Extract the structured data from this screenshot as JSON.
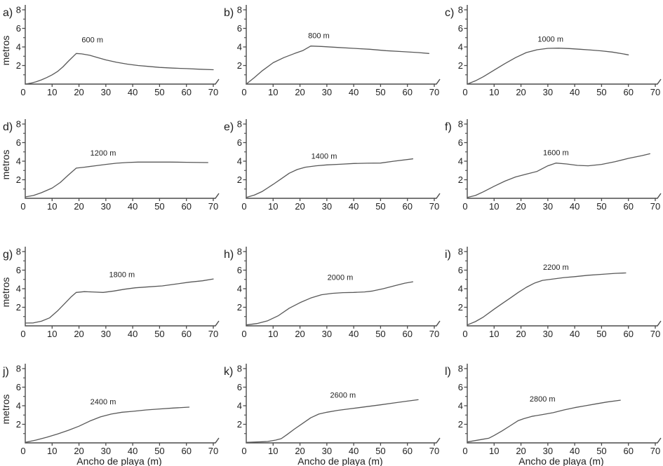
{
  "figure": {
    "xlabel": "Ancho de playa (m)",
    "ylabel": "metros",
    "colors": {
      "axis": "#4a4a4a",
      "curve": "#585858",
      "text": "#1e1e1e",
      "background": "#ffffff"
    },
    "axes": {
      "xlim": [
        0,
        70
      ],
      "ylim": [
        0,
        8
      ],
      "xticks": [
        0,
        10,
        20,
        30,
        40,
        50,
        60,
        70
      ],
      "yticks": [
        0,
        2,
        4,
        6,
        8
      ],
      "yminorticks": [
        1,
        3,
        5,
        7
      ],
      "grid": false
    }
  },
  "chart_data": [
    {
      "type": "line",
      "panel": "a)",
      "annotation": "600 m",
      "annotation_xy": [
        25,
        4.5
      ],
      "xlabel": "Ancho de playa (m)",
      "ylabel": "metros",
      "xlim": [
        0,
        70
      ],
      "ylim": [
        0,
        8
      ],
      "x": [
        0,
        2,
        4,
        6,
        8,
        10,
        12,
        14,
        16,
        19,
        21,
        24,
        27,
        30,
        34,
        38,
        42,
        46,
        50,
        55,
        60,
        65,
        70
      ],
      "y": [
        0,
        0.1,
        0.25,
        0.45,
        0.7,
        1.0,
        1.35,
        1.85,
        2.45,
        3.3,
        3.25,
        3.1,
        2.85,
        2.6,
        2.35,
        2.15,
        2.0,
        1.9,
        1.8,
        1.72,
        1.67,
        1.6,
        1.55
      ]
    },
    {
      "type": "line",
      "panel": "b)",
      "annotation": "800 m",
      "annotation_xy": [
        27,
        4.95
      ],
      "xlabel": "Ancho de playa (m)",
      "ylabel": "metros",
      "xlim": [
        0,
        70
      ],
      "ylim": [
        0,
        8
      ],
      "x": [
        0,
        3,
        6,
        10,
        14,
        18,
        21,
        24,
        28,
        34,
        40,
        46,
        52,
        58,
        64,
        68
      ],
      "y": [
        0,
        0.7,
        1.45,
        2.3,
        2.85,
        3.3,
        3.6,
        4.1,
        4.05,
        3.95,
        3.85,
        3.75,
        3.6,
        3.5,
        3.4,
        3.3
      ]
    },
    {
      "type": "line",
      "panel": "c)",
      "annotation": "1000 m",
      "annotation_xy": [
        31,
        4.55
      ],
      "xlabel": "Ancho de playa (m)",
      "ylabel": "metros",
      "xlim": [
        0,
        70
      ],
      "ylim": [
        0,
        8
      ],
      "x": [
        0,
        3,
        6,
        10,
        14,
        18,
        22,
        26,
        30,
        34,
        38,
        42,
        46,
        50,
        54,
        58,
        60
      ],
      "y": [
        0,
        0.35,
        0.8,
        1.5,
        2.2,
        2.85,
        3.4,
        3.7,
        3.85,
        3.87,
        3.83,
        3.75,
        3.67,
        3.58,
        3.45,
        3.25,
        3.15
      ]
    },
    {
      "type": "line",
      "panel": "d)",
      "annotation": "1200 m",
      "annotation_xy": [
        29,
        4.6
      ],
      "xlabel": "Ancho de playa (m)",
      "ylabel": "metros",
      "xlim": [
        0,
        70
      ],
      "ylim": [
        0,
        8
      ],
      "x": [
        0,
        3,
        6,
        10,
        13,
        16,
        19,
        22,
        26,
        30,
        34,
        38,
        42,
        48,
        54,
        60,
        68
      ],
      "y": [
        0.15,
        0.3,
        0.6,
        1.1,
        1.7,
        2.5,
        3.25,
        3.35,
        3.5,
        3.65,
        3.78,
        3.86,
        3.9,
        3.9,
        3.9,
        3.88,
        3.85
      ]
    },
    {
      "type": "line",
      "panel": "e)",
      "annotation": "1400 m",
      "annotation_xy": [
        29,
        4.25
      ],
      "xlabel": "Ancho de playa (m)",
      "ylabel": "metros",
      "xlim": [
        0,
        70
      ],
      "ylim": [
        0,
        8
      ],
      "x": [
        0,
        3,
        6,
        10,
        13,
        16,
        19,
        22,
        26,
        30,
        35,
        40,
        45,
        50,
        55,
        62
      ],
      "y": [
        0.1,
        0.35,
        0.75,
        1.5,
        2.1,
        2.7,
        3.1,
        3.35,
        3.5,
        3.6,
        3.67,
        3.75,
        3.78,
        3.8,
        4.0,
        4.25
      ]
    },
    {
      "type": "line",
      "panel": "f)",
      "annotation": "1600 m",
      "annotation_xy": [
        33,
        4.65
      ],
      "xlabel": "Ancho de playa (m)",
      "ylabel": "metros",
      "xlim": [
        0,
        70
      ],
      "ylim": [
        0,
        8
      ],
      "x": [
        0,
        3,
        6,
        10,
        14,
        18,
        22,
        26,
        30,
        33,
        37,
        41,
        45,
        50,
        55,
        60,
        65,
        68
      ],
      "y": [
        0.1,
        0.3,
        0.7,
        1.3,
        1.85,
        2.3,
        2.6,
        2.9,
        3.5,
        3.8,
        3.7,
        3.55,
        3.5,
        3.65,
        3.95,
        4.3,
        4.6,
        4.8
      ]
    },
    {
      "type": "line",
      "panel": "g)",
      "annotation": "1800 m",
      "annotation_xy": [
        36,
        5.25
      ],
      "xlabel": "Ancho de playa (m)",
      "ylabel": "metros",
      "xlim": [
        0,
        70
      ],
      "ylim": [
        0,
        8
      ],
      "x": [
        0,
        3,
        6,
        9,
        12,
        15,
        17,
        19,
        22,
        25,
        29,
        33,
        37,
        41,
        46,
        51,
        56,
        61,
        66,
        70
      ],
      "y": [
        0.3,
        0.32,
        0.5,
        0.85,
        1.6,
        2.5,
        3.1,
        3.6,
        3.68,
        3.65,
        3.6,
        3.75,
        3.95,
        4.1,
        4.2,
        4.3,
        4.5,
        4.7,
        4.85,
        5.05
      ]
    },
    {
      "type": "line",
      "panel": "h)",
      "annotation": "2000 m",
      "annotation_xy": [
        35,
        4.95
      ],
      "xlabel": "Ancho de playa (m)",
      "ylabel": "metros",
      "xlim": [
        0,
        70
      ],
      "ylim": [
        0,
        8
      ],
      "x": [
        0,
        4,
        8,
        12,
        16,
        20,
        24,
        28,
        32,
        36,
        40,
        44,
        47,
        51,
        55,
        59,
        62
      ],
      "y": [
        0.1,
        0.25,
        0.55,
        1.1,
        1.9,
        2.5,
        3.0,
        3.35,
        3.5,
        3.58,
        3.6,
        3.65,
        3.75,
        4.0,
        4.3,
        4.6,
        4.75
      ]
    },
    {
      "type": "line",
      "panel": "i)",
      "annotation": "2200 m",
      "annotation_xy": [
        33,
        6.05
      ],
      "xlabel": "Ancho de playa (m)",
      "ylabel": "metros",
      "xlim": [
        0,
        70
      ],
      "ylim": [
        0,
        8
      ],
      "x": [
        0,
        3,
        6,
        10,
        13,
        16,
        19,
        22,
        25,
        28,
        32,
        36,
        40,
        45,
        50,
        55,
        59
      ],
      "y": [
        0.1,
        0.45,
        0.95,
        1.8,
        2.4,
        3.0,
        3.6,
        4.15,
        4.6,
        4.9,
        5.05,
        5.2,
        5.3,
        5.45,
        5.55,
        5.65,
        5.7
      ]
    },
    {
      "type": "line",
      "panel": "j)",
      "annotation": "2400 m",
      "annotation_xy": [
        29,
        4.15
      ],
      "xlabel": "Ancho de playa (m)",
      "ylabel": "metros",
      "xlim": [
        0,
        70
      ],
      "ylim": [
        0,
        8
      ],
      "x": [
        0,
        4,
        8,
        12,
        16,
        20,
        24,
        28,
        32,
        36,
        40,
        45,
        50,
        55,
        61
      ],
      "y": [
        0.05,
        0.3,
        0.6,
        0.95,
        1.35,
        1.8,
        2.35,
        2.8,
        3.1,
        3.3,
        3.4,
        3.55,
        3.65,
        3.75,
        3.85
      ]
    },
    {
      "type": "line",
      "panel": "k)",
      "annotation": "2600 m",
      "annotation_xy": [
        36,
        4.85
      ],
      "xlabel": "Ancho de playa (m)",
      "ylabel": "metros",
      "xlim": [
        0,
        70
      ],
      "ylim": [
        0,
        8
      ],
      "x": [
        0,
        4,
        8,
        11,
        13,
        15,
        18,
        21,
        24,
        27,
        30,
        34,
        38,
        42,
        46,
        50,
        55,
        60,
        64
      ],
      "y": [
        0.05,
        0.1,
        0.15,
        0.3,
        0.45,
        0.85,
        1.5,
        2.1,
        2.7,
        3.1,
        3.3,
        3.5,
        3.65,
        3.8,
        3.95,
        4.1,
        4.3,
        4.5,
        4.65
      ]
    },
    {
      "type": "line",
      "panel": "l)",
      "annotation": "2800 m",
      "annotation_xy": [
        28,
        4.45
      ],
      "xlabel": "Ancho de playa (m)",
      "ylabel": "metros",
      "xlim": [
        0,
        70
      ],
      "ylim": [
        0,
        8
      ],
      "x": [
        0,
        3,
        6,
        8,
        10,
        13,
        16,
        19,
        21,
        24,
        28,
        32,
        36,
        40,
        44,
        48,
        52,
        57
      ],
      "y": [
        0.1,
        0.25,
        0.4,
        0.5,
        0.8,
        1.3,
        1.85,
        2.4,
        2.6,
        2.85,
        3.05,
        3.25,
        3.55,
        3.8,
        4.0,
        4.2,
        4.4,
        4.6
      ]
    }
  ]
}
